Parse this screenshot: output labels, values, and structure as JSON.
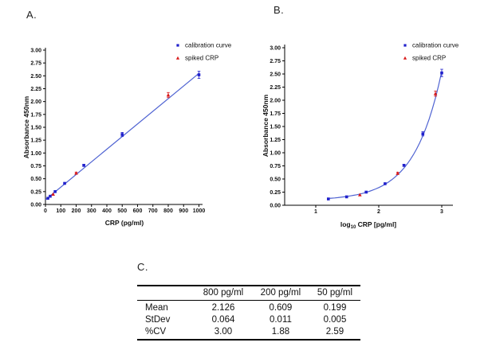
{
  "panels": {
    "a_label": "A.",
    "b_label": "B.",
    "c_label": "C."
  },
  "colors": {
    "calibration_marker": "#2121cc",
    "spiked_marker": "#d91818",
    "fit_line": "#4f63d2",
    "axis": "#000000",
    "text": "#1a1a1a"
  },
  "chart_data": [
    {
      "id": "A",
      "panel_label": "A.",
      "type": "scatter",
      "xlabel": "CRP (pg/ml)",
      "ylabel": "Absorbance 450nm",
      "xlim": [
        0,
        1020
      ],
      "ylim": [
        0,
        3.0
      ],
      "grid": false,
      "legend_position": "top-right",
      "xticks": [
        0,
        100,
        200,
        300,
        400,
        500,
        600,
        700,
        800,
        900,
        1000
      ],
      "yticks": [
        "0.00",
        "0.25",
        "0.50",
        "0.75",
        "1.00",
        "1.25",
        "1.50",
        "1.75",
        "2.00",
        "2.25",
        "2.50",
        "2.75",
        "3.00"
      ],
      "series": [
        {
          "name": "calibration curve",
          "marker": "square",
          "color": "#2121cc",
          "points": [
            [
              16,
              0.12
            ],
            [
              31,
              0.16
            ],
            [
              63,
              0.25
            ],
            [
              125,
              0.41
            ],
            [
              250,
              0.76
            ],
            [
              500,
              1.36
            ],
            [
              1000,
              2.52
            ]
          ],
          "errors": [
            0,
            0,
            0,
            0,
            0.02,
            0.04,
            0.07
          ]
        },
        {
          "name": "spiked CRP",
          "marker": "triangle",
          "color": "#d91818",
          "points": [
            [
              50,
              0.199
            ],
            [
              200,
              0.609
            ],
            [
              800,
              2.126
            ]
          ],
          "errors": [
            0,
            0.02,
            0.05
          ]
        }
      ],
      "fit": {
        "type": "linear",
        "slope": 0.002457,
        "intercept": 0.091,
        "x_range": [
          0,
          1000
        ],
        "color": "#4f63d2"
      }
    },
    {
      "id": "B",
      "panel_label": "B.",
      "type": "scatter",
      "xlabel_pre": "log",
      "xlabel_sub": "10",
      "xlabel_post": " CRP [pg/ml]",
      "ylabel": "Absorbance 450nm",
      "xlim": [
        0.55,
        3.25
      ],
      "ylim": [
        0,
        3.0
      ],
      "grid": false,
      "legend_position": "top-right",
      "xticks": [
        1,
        2,
        3
      ],
      "yticks": [
        "0.00",
        "0.25",
        "0.50",
        "0.75",
        "1.00",
        "1.25",
        "1.50",
        "1.75",
        "2.00",
        "2.25",
        "2.50",
        "2.75",
        "3.00"
      ],
      "series": [
        {
          "name": "calibration curve",
          "marker": "square",
          "color": "#2121cc",
          "points": [
            [
              1.2,
              0.12
            ],
            [
              1.49,
              0.16
            ],
            [
              1.8,
              0.25
            ],
            [
              2.1,
              0.41
            ],
            [
              2.4,
              0.76
            ],
            [
              2.7,
              1.36
            ],
            [
              3.0,
              2.52
            ]
          ],
          "errors": [
            0,
            0,
            0,
            0,
            0.02,
            0.04,
            0.07
          ]
        },
        {
          "name": "spiked CRP",
          "marker": "triangle",
          "color": "#d91818",
          "points": [
            [
              1.7,
              0.199
            ],
            [
              2.3,
              0.609
            ],
            [
              2.9,
              2.126
            ]
          ],
          "errors": [
            0,
            0.02,
            0.05
          ]
        }
      ],
      "fit": {
        "type": "exp10",
        "slope": 0.002457,
        "intercept": 0.091,
        "x_range": [
          1.2,
          3.0
        ],
        "color": "#4f63d2"
      }
    }
  ],
  "table": {
    "panel_label": "C.",
    "col_headers": [
      "",
      "800 pg/ml",
      "200 pg/ml",
      "50 pg/ml"
    ],
    "rows": [
      {
        "label": "Mean",
        "values": [
          "2.126",
          "0.609",
          "0.199"
        ]
      },
      {
        "label": "StDev",
        "values": [
          "0.064",
          "0.011",
          "0.005"
        ]
      },
      {
        "label": "%CV",
        "values": [
          "3.00",
          "1.88",
          "2.59"
        ]
      }
    ]
  }
}
